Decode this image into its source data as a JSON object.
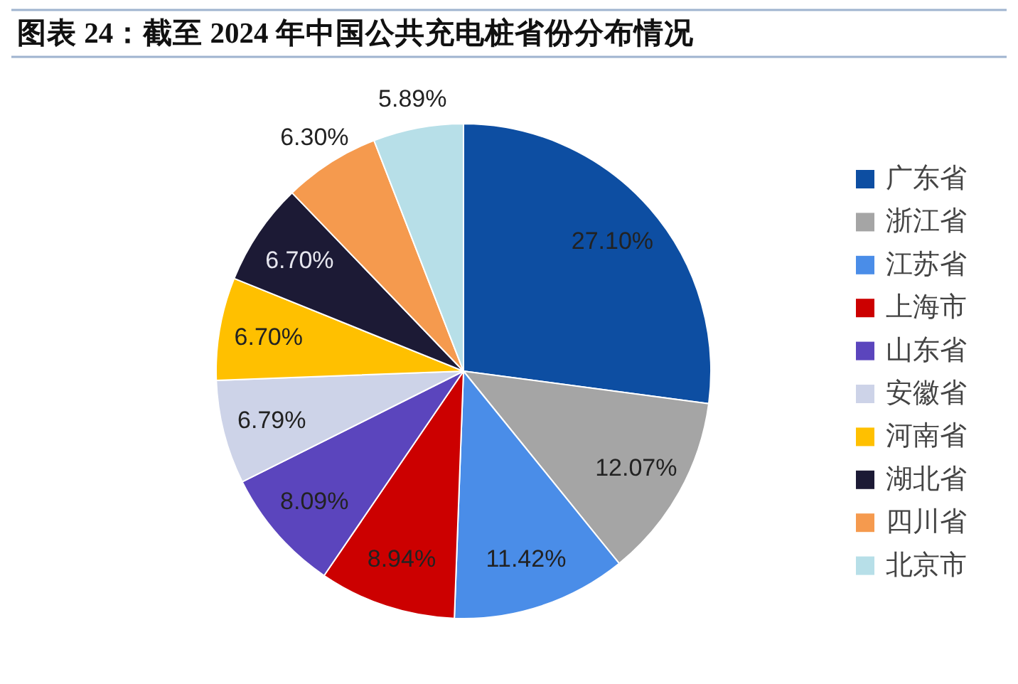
{
  "chart_data": {
    "type": "pie",
    "title": "图表 24：截至 2024 年中国公共充电桩省份分布情况",
    "categories": [
      "广东省",
      "浙江省",
      "江苏省",
      "上海市",
      "山东省",
      "安徽省",
      "河南省",
      "湖北省",
      "四川省",
      "北京市"
    ],
    "values": [
      27.1,
      12.07,
      11.42,
      8.94,
      8.09,
      6.79,
      6.7,
      6.7,
      6.3,
      5.89
    ],
    "value_labels": [
      "27.10%",
      "12.07%",
      "11.42%",
      "8.94%",
      "8.09%",
      "6.79%",
      "6.70%",
      "6.70%",
      "6.30%",
      "5.89%"
    ],
    "colors": [
      "#0d4ea2",
      "#a5a5a5",
      "#4a8de8",
      "#cc0000",
      "#5b45bd",
      "#cdd3e8",
      "#ffc000",
      "#1c1a35",
      "#f59a4e",
      "#b7dfe8"
    ],
    "legend": "right"
  }
}
